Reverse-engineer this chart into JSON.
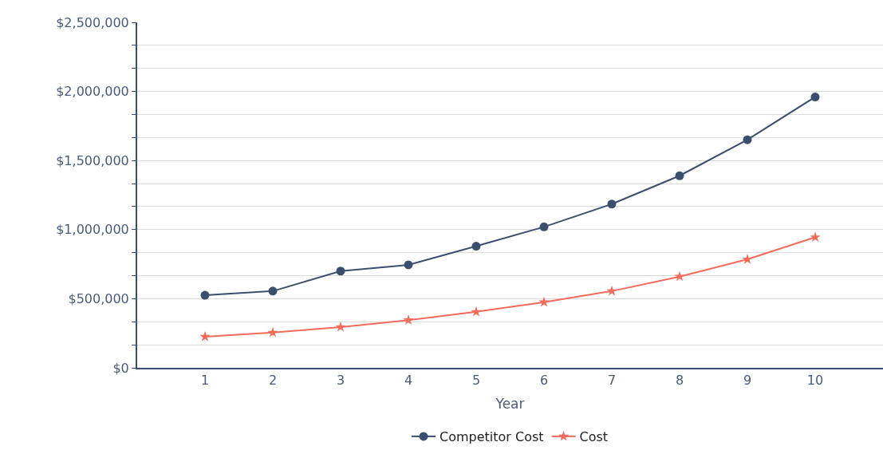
{
  "chart_data": {
    "type": "line",
    "xlabel": "Year",
    "x": [
      1,
      2,
      3,
      4,
      5,
      6,
      7,
      8,
      9,
      10
    ],
    "series": [
      {
        "name": "Competitor Cost",
        "color": "#3b4e6e",
        "marker": "circle",
        "values": [
          525000,
          555000,
          700000,
          745000,
          880000,
          1020000,
          1185000,
          1390000,
          1650000,
          1960000
        ]
      },
      {
        "name": "Cost",
        "color": "#f26b5b",
        "marker": "star",
        "values": [
          225000,
          255000,
          295000,
          345000,
          405000,
          475000,
          555000,
          660000,
          785000,
          945000
        ]
      }
    ],
    "xlim": [
      0,
      11
    ],
    "xticks": [
      1,
      2,
      3,
      4,
      5,
      6,
      7,
      8,
      9,
      10
    ],
    "ylim": [
      0,
      2500000
    ],
    "yticks": [
      {
        "value": 0,
        "label": "$0"
      },
      {
        "value": 166667,
        "label": null
      },
      {
        "value": 333333,
        "label": null
      },
      {
        "value": 500000,
        "label": "$500,000"
      },
      {
        "value": 666667,
        "label": null
      },
      {
        "value": 833333,
        "label": null
      },
      {
        "value": 1000000,
        "label": "$1,000,000"
      },
      {
        "value": 1166667,
        "label": null
      },
      {
        "value": 1333333,
        "label": null
      },
      {
        "value": 1500000,
        "label": "$1,500,000"
      },
      {
        "value": 1666667,
        "label": null
      },
      {
        "value": 1833333,
        "label": null
      },
      {
        "value": 2000000,
        "label": "$2,000,000"
      },
      {
        "value": 2166667,
        "label": null
      },
      {
        "value": 2333333,
        "label": null
      },
      {
        "value": 2500000,
        "label": "$2,500,000"
      }
    ],
    "grid": "y",
    "legend": "bottom",
    "line_style": "solid"
  }
}
